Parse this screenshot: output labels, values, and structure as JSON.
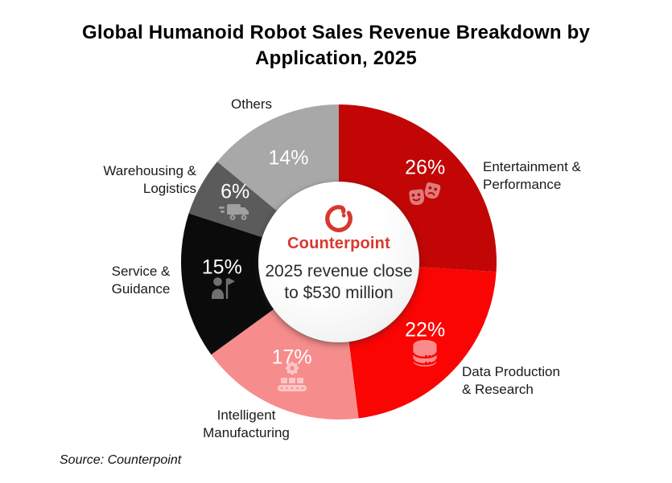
{
  "title": "Global Humanoid Robot Sales Revenue Breakdown by\nApplication, 2025",
  "source": "Source: Counterpoint",
  "center": {
    "brand": "Counterpoint",
    "note": "2025 revenue close\nto $530 million"
  },
  "colors": {
    "brand_red": "#D8382F",
    "percent_text": "#FFFFFF",
    "label_text": "#1A1A1A"
  },
  "chart_data": {
    "type": "pie",
    "donut": true,
    "title": "Global Humanoid Robot Sales Revenue Breakdown by Application, 2025",
    "unit": "%",
    "start_angle_deg": 0,
    "direction": "clockwise",
    "annotation": "2025 revenue close to $530 million",
    "segments": [
      {
        "label": "Entertainment &\nPerformance",
        "value": 26,
        "color": "#C20606",
        "icon": "theater-masks"
      },
      {
        "label": "Data Production\n& Research",
        "value": 22,
        "color": "#FA0404",
        "icon": "database"
      },
      {
        "label": "Intelligent\nManufacturing",
        "value": 17,
        "color": "#F78C8C",
        "icon": "factory-conveyor"
      },
      {
        "label": "Service &\nGuidance",
        "value": 15,
        "color": "#0B0B0B",
        "icon": "guide-person-flag"
      },
      {
        "label": "Warehousing &\nLogistics",
        "value": 6,
        "color": "#5B5B5B",
        "icon": "delivery-truck"
      },
      {
        "label": "Others",
        "value": 14,
        "color": "#A8A8A8",
        "icon": null
      }
    ]
  }
}
